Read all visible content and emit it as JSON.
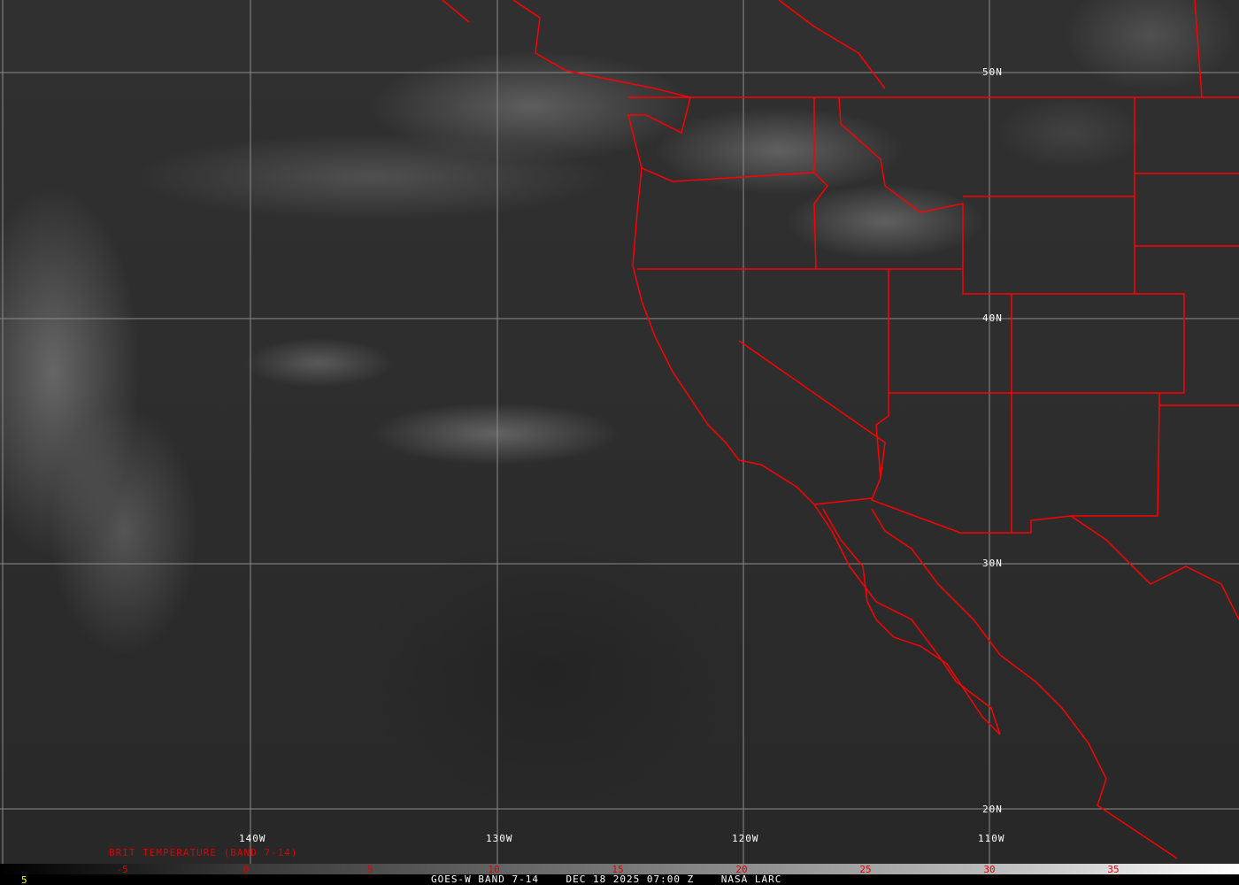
{
  "map": {
    "satellite_caption": "GOES-W BAND 7-14    DEC 18 2025 07:00 Z    NASA LARC",
    "corner_value": "5",
    "legend_title": "BRIT TEMPERATURE (BAND 7-14)",
    "border_color": "#ff0000",
    "grid_color": "#9a9a9a",
    "latitude_labels": [
      "50N",
      "40N",
      "30N",
      "20N"
    ],
    "longitude_labels": [
      "140W",
      "130W",
      "120W",
      "110W"
    ],
    "scale_ticks": [
      "-5",
      "0",
      "5",
      "10",
      "15",
      "20",
      "25",
      "30",
      "35"
    ],
    "scale_range": [
      -10,
      40
    ]
  }
}
